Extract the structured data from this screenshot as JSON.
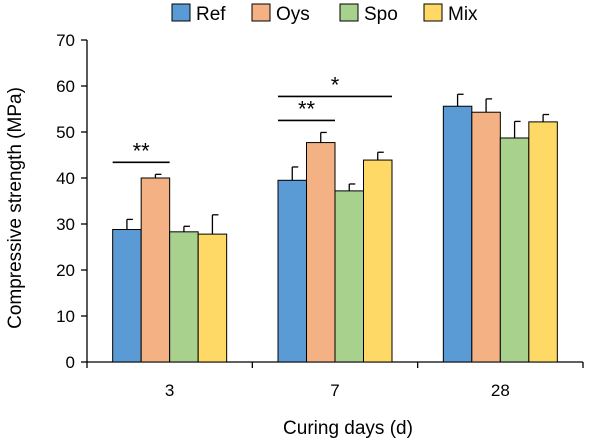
{
  "chart_data": {
    "type": "bar",
    "title": "",
    "xlabel": "Curing days (d)",
    "ylabel": "Compressive strength (MPa)",
    "ylim": [
      0,
      70
    ],
    "yticks": [
      0,
      10,
      20,
      30,
      40,
      50,
      60,
      70
    ],
    "categories": [
      "3",
      "7",
      "28"
    ],
    "legend_position": "top",
    "series": [
      {
        "name": "Ref",
        "color": "#5B9BD5",
        "values": [
          28.8,
          39.5,
          55.6
        ],
        "errors": [
          2.2,
          2.9,
          2.6
        ]
      },
      {
        "name": "Oys",
        "color": "#F4B183",
        "values": [
          40.0,
          47.7,
          54.3
        ],
        "errors": [
          0.8,
          2.2,
          2.9
        ]
      },
      {
        "name": "Spo",
        "color": "#A9D18E",
        "values": [
          28.3,
          37.2,
          48.7
        ],
        "errors": [
          1.2,
          1.5,
          3.6
        ]
      },
      {
        "name": "Mix",
        "color": "#FFD966",
        "values": [
          27.8,
          43.9,
          52.2
        ],
        "errors": [
          4.2,
          1.7,
          1.6
        ]
      }
    ],
    "annotations": [
      {
        "label": "**",
        "category": "3",
        "from_series": "Ref",
        "to_series": "Oys"
      },
      {
        "label": "**",
        "category": "7",
        "from_series": "Ref",
        "to_series": "Oys"
      },
      {
        "label": "*",
        "category": "7",
        "from_series": "Ref",
        "to_series": "Mix"
      }
    ]
  }
}
